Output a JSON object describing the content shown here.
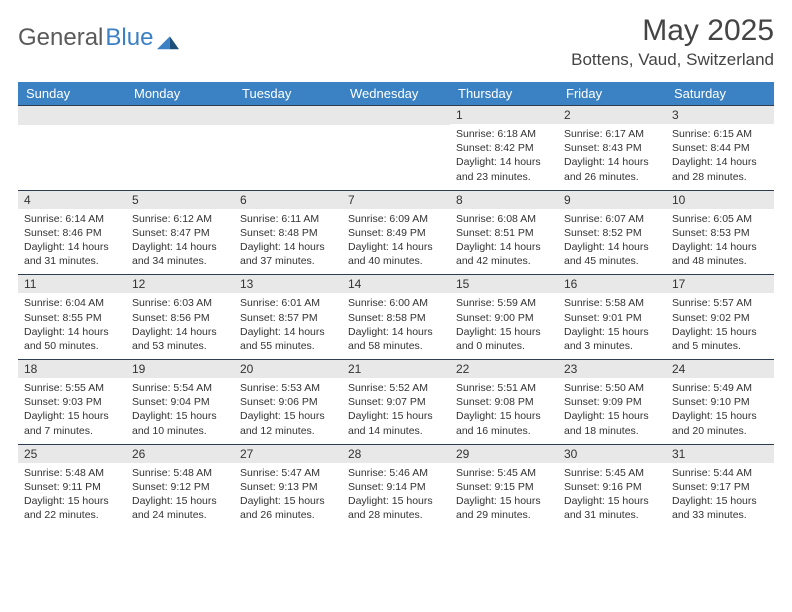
{
  "brand": {
    "general": "General",
    "blue": "Blue"
  },
  "colors": {
    "header_bg": "#3b82c4",
    "header_fg": "#ffffff",
    "daynum_bg": "#e8e8e8",
    "border": "#2c3e50",
    "text": "#333333",
    "title": "#444444"
  },
  "title": "May 2025",
  "location": "Bottens, Vaud, Switzerland",
  "weekdays": [
    "Sunday",
    "Monday",
    "Tuesday",
    "Wednesday",
    "Thursday",
    "Friday",
    "Saturday"
  ],
  "blanks_before": 4,
  "days": [
    {
      "n": "1",
      "sunrise": "6:18 AM",
      "sunset": "8:42 PM",
      "daylight": "14 hours and 23 minutes."
    },
    {
      "n": "2",
      "sunrise": "6:17 AM",
      "sunset": "8:43 PM",
      "daylight": "14 hours and 26 minutes."
    },
    {
      "n": "3",
      "sunrise": "6:15 AM",
      "sunset": "8:44 PM",
      "daylight": "14 hours and 28 minutes."
    },
    {
      "n": "4",
      "sunrise": "6:14 AM",
      "sunset": "8:46 PM",
      "daylight": "14 hours and 31 minutes."
    },
    {
      "n": "5",
      "sunrise": "6:12 AM",
      "sunset": "8:47 PM",
      "daylight": "14 hours and 34 minutes."
    },
    {
      "n": "6",
      "sunrise": "6:11 AM",
      "sunset": "8:48 PM",
      "daylight": "14 hours and 37 minutes."
    },
    {
      "n": "7",
      "sunrise": "6:09 AM",
      "sunset": "8:49 PM",
      "daylight": "14 hours and 40 minutes."
    },
    {
      "n": "8",
      "sunrise": "6:08 AM",
      "sunset": "8:51 PM",
      "daylight": "14 hours and 42 minutes."
    },
    {
      "n": "9",
      "sunrise": "6:07 AM",
      "sunset": "8:52 PM",
      "daylight": "14 hours and 45 minutes."
    },
    {
      "n": "10",
      "sunrise": "6:05 AM",
      "sunset": "8:53 PM",
      "daylight": "14 hours and 48 minutes."
    },
    {
      "n": "11",
      "sunrise": "6:04 AM",
      "sunset": "8:55 PM",
      "daylight": "14 hours and 50 minutes."
    },
    {
      "n": "12",
      "sunrise": "6:03 AM",
      "sunset": "8:56 PM",
      "daylight": "14 hours and 53 minutes."
    },
    {
      "n": "13",
      "sunrise": "6:01 AM",
      "sunset": "8:57 PM",
      "daylight": "14 hours and 55 minutes."
    },
    {
      "n": "14",
      "sunrise": "6:00 AM",
      "sunset": "8:58 PM",
      "daylight": "14 hours and 58 minutes."
    },
    {
      "n": "15",
      "sunrise": "5:59 AM",
      "sunset": "9:00 PM",
      "daylight": "15 hours and 0 minutes."
    },
    {
      "n": "16",
      "sunrise": "5:58 AM",
      "sunset": "9:01 PM",
      "daylight": "15 hours and 3 minutes."
    },
    {
      "n": "17",
      "sunrise": "5:57 AM",
      "sunset": "9:02 PM",
      "daylight": "15 hours and 5 minutes."
    },
    {
      "n": "18",
      "sunrise": "5:55 AM",
      "sunset": "9:03 PM",
      "daylight": "15 hours and 7 minutes."
    },
    {
      "n": "19",
      "sunrise": "5:54 AM",
      "sunset": "9:04 PM",
      "daylight": "15 hours and 10 minutes."
    },
    {
      "n": "20",
      "sunrise": "5:53 AM",
      "sunset": "9:06 PM",
      "daylight": "15 hours and 12 minutes."
    },
    {
      "n": "21",
      "sunrise": "5:52 AM",
      "sunset": "9:07 PM",
      "daylight": "15 hours and 14 minutes."
    },
    {
      "n": "22",
      "sunrise": "5:51 AM",
      "sunset": "9:08 PM",
      "daylight": "15 hours and 16 minutes."
    },
    {
      "n": "23",
      "sunrise": "5:50 AM",
      "sunset": "9:09 PM",
      "daylight": "15 hours and 18 minutes."
    },
    {
      "n": "24",
      "sunrise": "5:49 AM",
      "sunset": "9:10 PM",
      "daylight": "15 hours and 20 minutes."
    },
    {
      "n": "25",
      "sunrise": "5:48 AM",
      "sunset": "9:11 PM",
      "daylight": "15 hours and 22 minutes."
    },
    {
      "n": "26",
      "sunrise": "5:48 AM",
      "sunset": "9:12 PM",
      "daylight": "15 hours and 24 minutes."
    },
    {
      "n": "27",
      "sunrise": "5:47 AM",
      "sunset": "9:13 PM",
      "daylight": "15 hours and 26 minutes."
    },
    {
      "n": "28",
      "sunrise": "5:46 AM",
      "sunset": "9:14 PM",
      "daylight": "15 hours and 28 minutes."
    },
    {
      "n": "29",
      "sunrise": "5:45 AM",
      "sunset": "9:15 PM",
      "daylight": "15 hours and 29 minutes."
    },
    {
      "n": "30",
      "sunrise": "5:45 AM",
      "sunset": "9:16 PM",
      "daylight": "15 hours and 31 minutes."
    },
    {
      "n": "31",
      "sunrise": "5:44 AM",
      "sunset": "9:17 PM",
      "daylight": "15 hours and 33 minutes."
    }
  ],
  "labels": {
    "sunrise": "Sunrise: ",
    "sunset": "Sunset: ",
    "daylight": "Daylight: "
  }
}
